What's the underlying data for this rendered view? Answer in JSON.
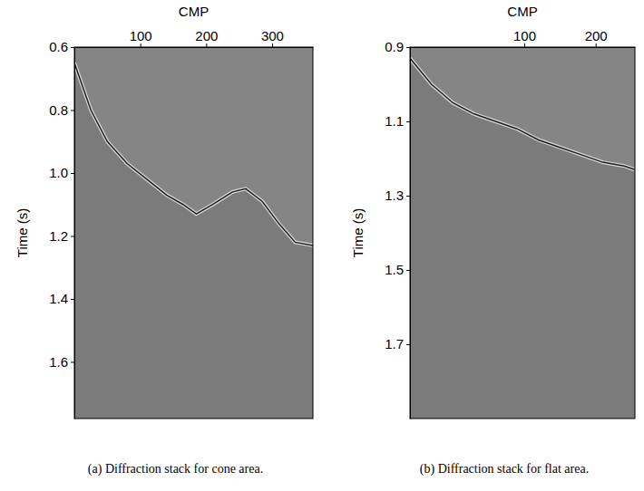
{
  "chart_data": [
    {
      "type": "line",
      "title": "(a) Diffraction stack for cone area.",
      "x_label": "CMP",
      "y_label": "Time (s)",
      "x": [
        0,
        25,
        50,
        80,
        110,
        140,
        165,
        185,
        210,
        240,
        260,
        285,
        310,
        335,
        362
      ],
      "values": [
        0.65,
        0.8,
        0.9,
        0.97,
        1.02,
        1.07,
        1.1,
        1.13,
        1.1,
        1.06,
        1.05,
        1.09,
        1.16,
        1.22,
        1.23
      ],
      "color": "#1e1e1e",
      "xlim": [
        0,
        362
      ],
      "ylim": [
        0.6,
        1.78
      ],
      "xticks": [
        100,
        200,
        300
      ],
      "yticks": [
        0.6,
        0.8,
        {
          "value": 1,
          "label": "1.0"
        },
        1.2,
        1.4,
        1.6
      ]
    },
    {
      "type": "line",
      "title": "(b) Diffraction stack for flat area.",
      "x_label": "CMP",
      "y_label": "Time (s)",
      "x": [
        -60,
        -30,
        0,
        30,
        60,
        90,
        120,
        150,
        180,
        210,
        240,
        255
      ],
      "values": [
        0.93,
        1.0,
        1.05,
        1.08,
        1.1,
        1.12,
        1.15,
        1.17,
        1.19,
        1.21,
        1.22,
        1.23
      ],
      "color": "#1e1e1e",
      "xlim": [
        -60,
        255
      ],
      "ylim": [
        0.9,
        1.9
      ],
      "xticks": [
        100,
        200
      ],
      "yticks": [
        0.9,
        1.1,
        1.3,
        1.5,
        1.7
      ]
    }
  ]
}
